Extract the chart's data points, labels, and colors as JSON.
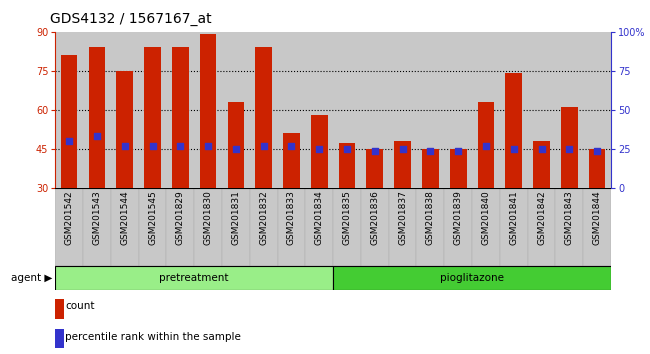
{
  "title": "GDS4132 / 1567167_at",
  "samples": [
    "GSM201542",
    "GSM201543",
    "GSM201544",
    "GSM201545",
    "GSM201829",
    "GSM201830",
    "GSM201831",
    "GSM201832",
    "GSM201833",
    "GSM201834",
    "GSM201835",
    "GSM201836",
    "GSM201837",
    "GSM201838",
    "GSM201839",
    "GSM201840",
    "GSM201841",
    "GSM201842",
    "GSM201843",
    "GSM201844"
  ],
  "bar_tops": [
    81,
    84,
    75,
    84,
    84,
    89,
    63,
    84,
    51,
    58,
    47,
    45,
    48,
    45,
    45,
    63,
    74,
    48,
    61,
    45
  ],
  "bar_bottoms": [
    30,
    30,
    30,
    30,
    30,
    30,
    30,
    30,
    30,
    30,
    30,
    30,
    30,
    30,
    30,
    30,
    30,
    30,
    30,
    30
  ],
  "blue_dots": [
    48,
    50,
    46,
    46,
    46,
    46,
    45,
    46,
    46,
    45,
    45,
    44,
    45,
    44,
    44,
    46,
    45,
    45,
    45,
    44
  ],
  "pretreatment_count": 10,
  "pioglitazone_count": 10,
  "ylim_left": [
    30,
    90
  ],
  "ylim_right": [
    0,
    100
  ],
  "yticks_left": [
    30,
    45,
    60,
    75,
    90
  ],
  "yticks_right": [
    0,
    25,
    50,
    75,
    100
  ],
  "ytick_labels_right": [
    "0",
    "25",
    "50",
    "75",
    "100%"
  ],
  "grid_values": [
    45,
    60,
    75
  ],
  "bar_color": "#cc2200",
  "dot_color": "#3333cc",
  "pretreat_color": "#99ee88",
  "pioglitazone_color": "#44cc33",
  "bar_width": 0.6,
  "title_fontsize": 10,
  "tick_fontsize": 6.5,
  "axis_color_left": "#cc2200",
  "axis_color_right": "#3333cc",
  "col_bg_color": "#c8c8c8",
  "col_bg_edge": "#aaaaaa"
}
